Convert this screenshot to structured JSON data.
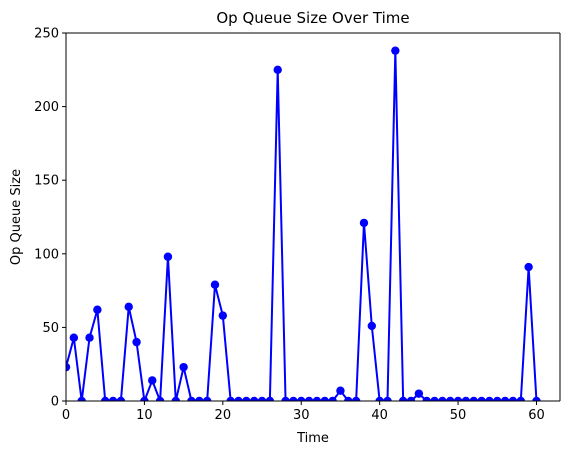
{
  "chart_data": {
    "type": "line",
    "title": "Op Queue Size Over Time",
    "xlabel": "Time",
    "ylabel": "Op Queue Size",
    "xlim": [
      0,
      63
    ],
    "ylim": [
      0,
      250
    ],
    "xticks": [
      0,
      10,
      20,
      30,
      40,
      50,
      60
    ],
    "yticks": [
      0,
      50,
      100,
      150,
      200,
      250
    ],
    "grid": false,
    "marker": "circle",
    "colors": {
      "series": "#0000ff",
      "axes": "#000000",
      "background": "#ffffff"
    },
    "series": [
      {
        "x": [
          0,
          1,
          2,
          3,
          4,
          5,
          6,
          7,
          8,
          9,
          10,
          11,
          12,
          13,
          14,
          15,
          16,
          17,
          18,
          19,
          20,
          21,
          22,
          23,
          24,
          25,
          26,
          27,
          28,
          29,
          30,
          31,
          32,
          33,
          34,
          35,
          36,
          37,
          38,
          39,
          40,
          41,
          42,
          43,
          44,
          45,
          46,
          47,
          48,
          49,
          50,
          51,
          52,
          53,
          54,
          55,
          56,
          57,
          58,
          59,
          60
        ],
        "values": [
          23,
          43,
          0,
          43,
          62,
          0,
          0,
          0,
          64,
          40,
          0,
          14,
          0,
          98,
          0,
          23,
          0,
          0,
          0,
          79,
          58,
          0,
          0,
          0,
          0,
          0,
          0,
          225,
          0,
          0,
          0,
          0,
          0,
          0,
          0,
          7,
          0,
          0,
          121,
          51,
          0,
          0,
          238,
          0,
          0,
          5,
          0,
          0,
          0,
          0,
          0,
          0,
          0,
          0,
          0,
          0,
          0,
          0,
          0,
          91,
          0
        ]
      }
    ]
  }
}
